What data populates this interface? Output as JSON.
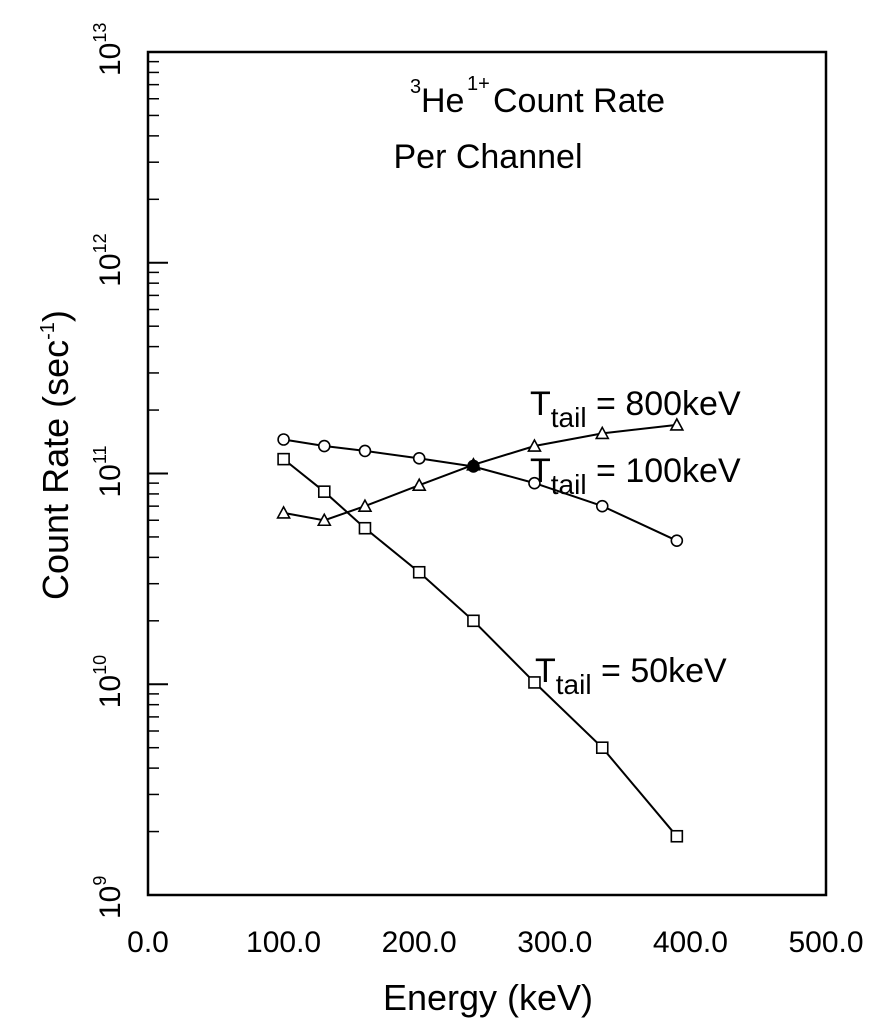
{
  "chart_data": {
    "type": "line",
    "title_line1_base": "He",
    "title_line1_pre_sup": "3",
    "title_line1_sup": "1+",
    "title_line1_rest": " Count Rate",
    "title_line2": "Per Channel",
    "xlabel": "Energy (keV)",
    "ylabel": "Count Rate (sec",
    "ylabel_sup": "-1",
    "ylabel_close": ")",
    "xlim": [
      0,
      500
    ],
    "ylim": [
      1000000000.0,
      10000000000000.0
    ],
    "yscale": "log",
    "x_ticks": [
      "0.0",
      "100.0",
      "200.0",
      "300.0",
      "400.0",
      "500.0"
    ],
    "y_ticks": [
      {
        "base": "10",
        "exp": "9"
      },
      {
        "base": "10",
        "exp": "10"
      },
      {
        "base": "10",
        "exp": "11"
      },
      {
        "base": "10",
        "exp": "12"
      },
      {
        "base": "10",
        "exp": "13"
      }
    ],
    "series": [
      {
        "label_T": "T",
        "label_sub": "tail",
        "label_rest": " = 800keV",
        "marker": "triangle",
        "x": [
          100,
          130,
          160,
          200,
          240,
          285,
          335,
          390
        ],
        "y": [
          65000000000.0,
          60000000000.0,
          70000000000.0,
          88000000000.0,
          110000000000.0,
          135000000000.0,
          155000000000.0,
          170000000000.0
        ]
      },
      {
        "label_T": "T",
        "label_sub": "tail",
        "label_rest": " = 100keV",
        "marker": "circle",
        "x": [
          100,
          130,
          160,
          200,
          240,
          285,
          335,
          390
        ],
        "y": [
          145000000000.0,
          135000000000.0,
          128000000000.0,
          118000000000.0,
          108000000000.0,
          90000000000.0,
          70000000000.0,
          48000000000.0
        ]
      },
      {
        "label_T": "T",
        "label_sub": "tail",
        "label_rest": " = 50keV",
        "marker": "square",
        "x": [
          100,
          130,
          160,
          200,
          240,
          285,
          335,
          390
        ],
        "y": [
          117000000000.0,
          82000000000.0,
          55000000000.0,
          34000000000.0,
          20000000000.0,
          10200000000.0,
          5000000000.0,
          1900000000.0
        ]
      }
    ]
  }
}
